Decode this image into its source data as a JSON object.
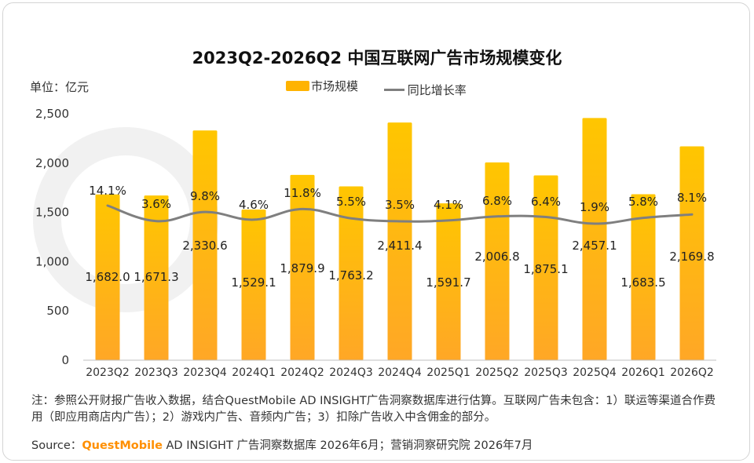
{
  "title": "2023Q2-2026Q2 中国互联网广告市场规模变化",
  "unit_label": "单位：亿元",
  "legend": {
    "bar": "市场规模",
    "line": "同比增长率"
  },
  "note": "注：参照公开财报广告收入数据，结合QuestMobile AD INSIGHT广告洞察数据库进行估算。互联网广告未包含：1）联运等渠道合作费用（即应用商店内广告）；2）游戏内广告、音频内广告；3）扣除广告收入中含佣金的部分。",
  "source": {
    "prefix": "Source：",
    "brand": "QuestMobile",
    "rest": " AD INSIGHT 广告洞察数据库 2026年6月；营销洞察研究院 2026年7月"
  },
  "colors": {
    "bar_top": "#FFC600",
    "bar_bottom": "#FFA726",
    "line": "#7f7f7f",
    "axis": "#bfbfbf"
  },
  "chart_data": {
    "type": "bar",
    "title": "2023Q2-2026Q2 中国互联网广告市场规模变化",
    "categories": [
      "2023Q2",
      "2023Q3",
      "2023Q4",
      "2024Q1",
      "2024Q2",
      "2024Q3",
      "2024Q4",
      "2025Q1",
      "2025Q2",
      "2025Q3",
      "2025Q4",
      "2026Q1",
      "2026Q2"
    ],
    "series": [
      {
        "name": "市场规模",
        "type": "bar",
        "values": [
          1682.0,
          1671.3,
          2330.6,
          1529.1,
          1879.9,
          1763.2,
          2411.4,
          1591.7,
          2006.8,
          1875.1,
          2457.1,
          1683.5,
          2169.8
        ],
        "labels": [
          "1,682.0",
          "1,671.3",
          "2,330.6",
          "1,529.1",
          "1,879.9",
          "1,763.2",
          "2,411.4",
          "1,591.7",
          "2,006.8",
          "1,875.1",
          "2,457.1",
          "1,683.5",
          "2,169.8"
        ]
      },
      {
        "name": "同比增长率",
        "type": "line",
        "values": [
          14.1,
          3.6,
          9.8,
          4.6,
          11.8,
          5.5,
          3.5,
          4.1,
          6.8,
          6.4,
          1.9,
          5.8,
          8.1
        ],
        "labels": [
          "14.1%",
          "3.6%",
          "9.8%",
          "4.6%",
          "11.8%",
          "5.5%",
          "3.5%",
          "4.1%",
          "6.8%",
          "6.4%",
          "1.9%",
          "5.8%",
          "8.1%"
        ]
      }
    ],
    "ylim": [
      0,
      2500
    ],
    "yticks": [
      "0",
      "500",
      "1,000",
      "1,500",
      "2,000",
      "2,500"
    ],
    "yticks_values": [
      0,
      500,
      1000,
      1500,
      2000,
      2500
    ],
    "legend_position": "top-center",
    "grid": false
  }
}
